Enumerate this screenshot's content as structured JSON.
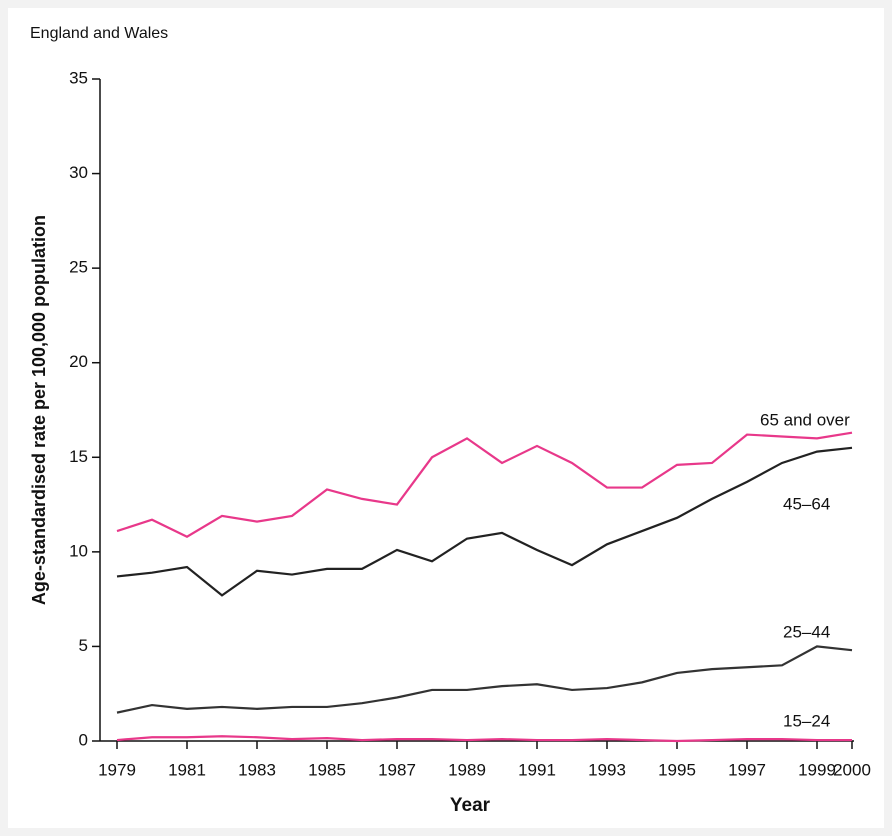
{
  "chart_data": {
    "type": "line",
    "title": "England and Wales",
    "ylabel": "Age-standardised rate per 100,000 population",
    "xlabel": "Year",
    "x": [
      1979,
      1980,
      1981,
      1982,
      1983,
      1984,
      1985,
      1986,
      1987,
      1988,
      1989,
      1990,
      1991,
      1992,
      1993,
      1994,
      1995,
      1996,
      1997,
      1998,
      1999,
      2000
    ],
    "series": [
      {
        "name": "65 and over",
        "color": "#e8388a",
        "values": [
          11.1,
          11.7,
          10.8,
          11.9,
          11.6,
          11.9,
          13.3,
          12.8,
          12.5,
          15.0,
          16.0,
          14.7,
          15.6,
          14.7,
          13.4,
          13.4,
          14.6,
          14.7,
          16.2,
          16.1,
          16.0,
          16.3
        ]
      },
      {
        "name": "45–64",
        "color": "#222222",
        "values": [
          8.7,
          8.9,
          9.2,
          7.7,
          9.0,
          8.8,
          9.1,
          9.1,
          10.1,
          9.5,
          10.7,
          11.0,
          10.1,
          9.3,
          10.4,
          11.1,
          11.8,
          12.8,
          13.7,
          14.7,
          15.3,
          15.5
        ]
      },
      {
        "name": "25–44",
        "color": "#333333",
        "values": [
          1.5,
          1.9,
          1.7,
          1.8,
          1.7,
          1.8,
          1.8,
          2.0,
          2.3,
          2.7,
          2.7,
          2.9,
          3.0,
          2.7,
          2.8,
          3.1,
          3.6,
          3.8,
          3.9,
          4.0,
          5.0,
          4.8
        ]
      },
      {
        "name": "15–24",
        "color": "#e8388a",
        "values": [
          0.05,
          0.2,
          0.2,
          0.25,
          0.2,
          0.1,
          0.15,
          0.05,
          0.1,
          0.1,
          0.05,
          0.1,
          0.05,
          0.05,
          0.1,
          0.05,
          0.0,
          0.05,
          0.1,
          0.1,
          0.05,
          0.05
        ]
      }
    ],
    "xlim": [
      1979,
      2000
    ],
    "xticks": [
      1979,
      1981,
      1983,
      1985,
      1987,
      1989,
      1991,
      1993,
      1995,
      1997,
      1999,
      2000
    ],
    "ylim": [
      0,
      35
    ],
    "yticks": [
      0,
      5,
      10,
      15,
      20,
      25,
      30,
      35
    ],
    "grid": false
  }
}
